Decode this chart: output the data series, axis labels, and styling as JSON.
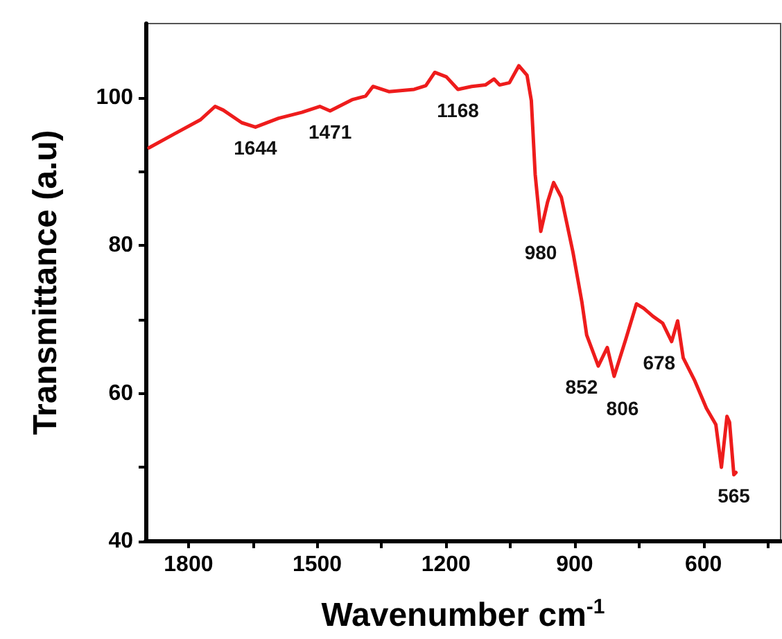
{
  "chart_data": {
    "type": "line",
    "xlabel": "Wavenumber cm$^{-1}$",
    "ylabel": "Transmittance (a.u)",
    "x": [
      1892,
      1826,
      1772,
      1738,
      1719,
      1676,
      1644,
      1590,
      1536,
      1494,
      1470,
      1419,
      1387,
      1370,
      1333,
      1274,
      1247,
      1226,
      1199,
      1172,
      1140,
      1108,
      1088,
      1075,
      1052,
      1030,
      1011,
      1001,
      992,
      979,
      963,
      949,
      931,
      904,
      883,
      872,
      845,
      824,
      808,
      781,
      756,
      739,
      717,
      695,
      674,
      660,
      647,
      620,
      593,
      571,
      558,
      545,
      539,
      529,
      524
    ],
    "series": [
      {
        "color": "#ee1c1c",
        "values": [
          93.2,
          95.3,
          97.0,
          98.8,
          98.3,
          96.6,
          96.0,
          97.2,
          98.0,
          98.8,
          98.2,
          99.7,
          100.2,
          101.5,
          100.8,
          101.1,
          101.6,
          103.4,
          102.8,
          101.1,
          101.5,
          101.7,
          102.5,
          101.7,
          102.0,
          104.3,
          103.0,
          99.6,
          89.6,
          81.9,
          85.9,
          88.5,
          86.5,
          79.1,
          72.3,
          67.9,
          63.7,
          66.2,
          62.3,
          67.3,
          72.1,
          71.5,
          70.4,
          69.5,
          67.0,
          69.8,
          64.8,
          61.7,
          58.0,
          55.8,
          50.0,
          56.9,
          56.1,
          49.0,
          49.3
        ]
      }
    ],
    "xlim": [
      1900,
      420
    ],
    "ylim": [
      40,
      110
    ],
    "xticks": [
      1800,
      {
        "value": 1650,
        "label": null
      },
      1500,
      {
        "value": 1350,
        "label": null
      },
      1200,
      {
        "value": 1050,
        "label": null
      },
      900,
      {
        "value": 750,
        "label": null
      },
      600,
      {
        "value": 450,
        "label": null
      }
    ],
    "yticks": [
      40,
      {
        "value": 50,
        "label": null
      },
      60,
      {
        "value": 70,
        "label": null
      },
      80,
      {
        "value": 90,
        "label": null
      },
      100
    ],
    "grid": false,
    "marker": "none",
    "line_style": "solid",
    "annotations": [
      {
        "text": "1644",
        "x": 1644,
        "y": 96.0
      },
      {
        "text": "1471",
        "x": 1470,
        "y": 98.2
      },
      {
        "text": "1168",
        "x": 1172,
        "y": 101.1
      },
      {
        "text": "980",
        "x": 979,
        "y": 81.9
      },
      {
        "text": "852",
        "x": 845,
        "y": 63.7
      },
      {
        "text": "806",
        "x": 808,
        "y": 62.3
      },
      {
        "text": "678",
        "x": 674,
        "y": 67.0
      },
      {
        "text": "565",
        "x": 529,
        "y": 49.0
      }
    ]
  }
}
